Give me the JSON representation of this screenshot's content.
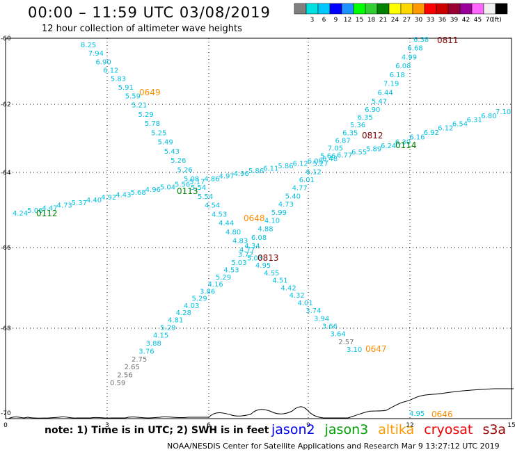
{
  "header": {
    "title": "00:00 – 11:59 UTC 03/08/2019",
    "subtitle": "12 hour collection of altimeter wave heights"
  },
  "note": "note: 1) Time is in UTC; 2) SWH is in feet",
  "footer": "NOAA/NESDIS Center for Satellite Applications and Research    Mar  9 13:27:12 UTC 2019",
  "satellites": [
    {
      "name": "jason2",
      "color": "#0000ee"
    },
    {
      "name": "jason3",
      "color": "#00a000"
    },
    {
      "name": "altika",
      "color": "#ff9900"
    },
    {
      "name": "cryosat",
      "color": "#ee0000"
    },
    {
      "name": "s3a",
      "color": "#990000"
    }
  ],
  "colorbar": {
    "unit": "(ft)",
    "colors": [
      "#808080",
      "#00e0e0",
      "#00c8ff",
      "#0000ff",
      "#1e90ff",
      "#00ff00",
      "#32cd32",
      "#008000",
      "#ffff00",
      "#ffd700",
      "#ff9900",
      "#ff0000",
      "#cc0000",
      "#990033",
      "#990099",
      "#ff66ff",
      "#f0f0f0",
      "#000000"
    ],
    "labels": [
      "3",
      "6",
      "9",
      "12",
      "15",
      "18",
      "21",
      "24",
      "27",
      "30",
      "33",
      "36",
      "39",
      "42",
      "45",
      "70"
    ]
  },
  "axes": {
    "x_ticks": [
      "0",
      "3",
      "6",
      "9",
      "12",
      "15"
    ],
    "y_ticks": [
      "-60",
      "-62",
      "-64",
      "-66",
      "-68",
      "-70"
    ]
  },
  "colors": {
    "cyan": "#00c0e0",
    "gray": "#707070",
    "orange": "#ff8c00",
    "green": "#008000",
    "darkred": "#800000"
  },
  "tracks": {
    "track_a": [
      "8.25",
      "7.94",
      "6.90",
      "6.12",
      "5.83",
      "5.91",
      "5.59",
      "5.21",
      "5.29",
      "5.78",
      "5.25",
      "5.49",
      "5.43",
      "5.26",
      "5.26",
      "5.08",
      "5.54",
      "5.54",
      "4.54",
      "4.53",
      "4.44",
      "4.80",
      "4.83",
      "4.77",
      "5.03",
      "4.95",
      "4.55",
      "4.51",
      "4.42",
      "4.32",
      "4.01",
      "3.74",
      "3.94",
      "3.66",
      "3.64",
      "2.57",
      "3.10"
    ],
    "track_b": [
      "0.59",
      "2.56",
      "2.65",
      "2.75",
      "3.76",
      "3.88",
      "4.15",
      "5.29",
      "4.81",
      "4.28",
      "4.03",
      "5.29",
      "3.86",
      "4.16",
      "5.29",
      "4.53",
      "5.03",
      "3.72",
      "4.34",
      "6.08",
      "4.88",
      "4.10",
      "5.99",
      "4.73",
      "5.40",
      "4.77",
      "6.01",
      "6.12",
      "5.27",
      "5.66",
      "7.05",
      "6.87",
      "6.35",
      "5.36",
      "6.35",
      "6.90",
      "5.47",
      "6.44",
      "7.19",
      "6.18",
      "6.08",
      "4.99",
      "6.68",
      "6.38"
    ],
    "track_c": [
      "4.24",
      "5.06",
      "4.47",
      "4.73",
      "5.37",
      "4.40",
      "4.92",
      "4.43",
      "5.68",
      "4.96",
      "5.04",
      "5.56",
      "5.17",
      "4.86",
      "4.97",
      "4.96",
      "5.86",
      "6.11",
      "5.86",
      "6.12",
      "6.08",
      "6.48",
      "6.77",
      "6.55",
      "5.89",
      "6.24",
      "6.30",
      "6.16",
      "6.92",
      "6.12",
      "6.54",
      "6.31",
      "6.80",
      "7.10"
    ],
    "track_d": [
      "4.95"
    ]
  },
  "time_labels": [
    {
      "text": "0649",
      "kind": "orange"
    },
    {
      "text": "0113",
      "kind": "green"
    },
    {
      "text": "0112",
      "kind": "green"
    },
    {
      "text": "0648",
      "kind": "orange"
    },
    {
      "text": "0813",
      "kind": "darkred"
    },
    {
      "text": "0812",
      "kind": "darkred"
    },
    {
      "text": "0114",
      "kind": "green"
    },
    {
      "text": "0811",
      "kind": "darkred"
    },
    {
      "text": "0647",
      "kind": "orange"
    },
    {
      "text": "0646",
      "kind": "orange"
    }
  ]
}
